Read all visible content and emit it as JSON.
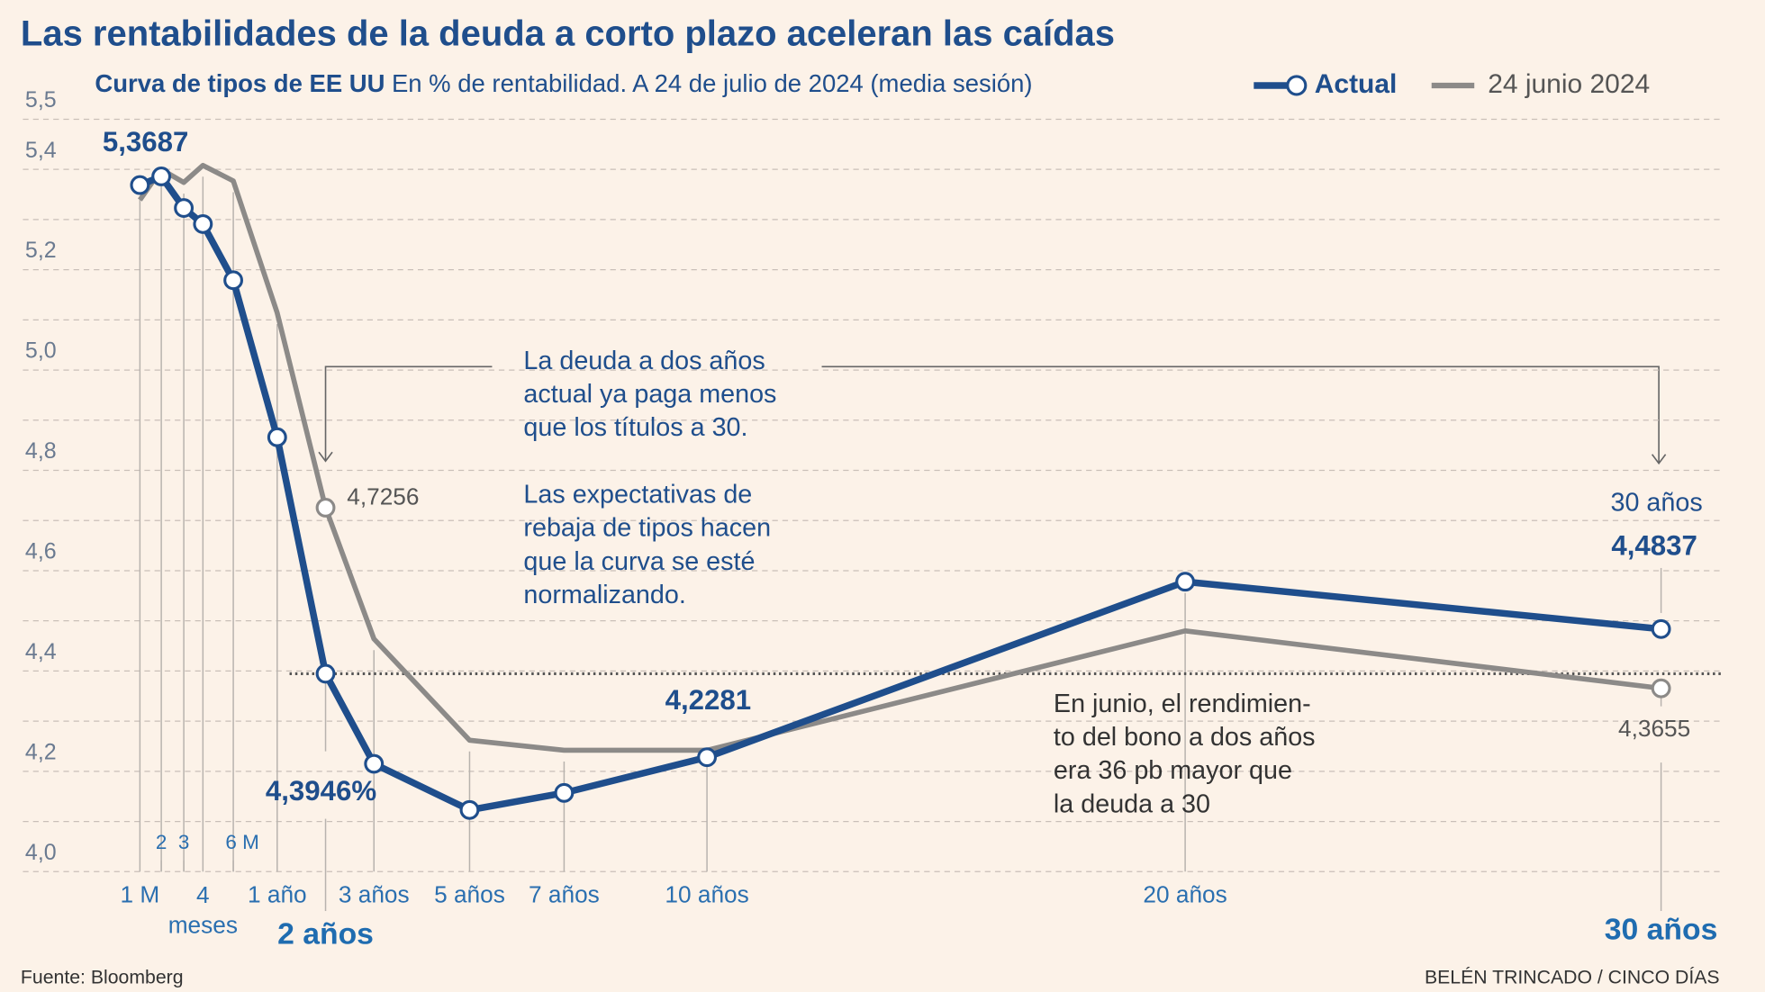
{
  "chart_data": {
    "type": "line",
    "title": "Las rentabilidades de la deuda a corto plazo aceleran las caídas",
    "subtitle_bold": "Curva de tipos de EE UU",
    "subtitle": "En % de rentabilidad. A 24 de julio de 2024 (media sesión)",
    "categories": [
      "1 M",
      "2",
      "3",
      "4 meses",
      "6 M",
      "1 año",
      "2 años",
      "3 años",
      "5 años",
      "7 años",
      "10 años",
      "20 años",
      "30 años"
    ],
    "highlighted_categories": [
      6,
      12
    ],
    "series": [
      {
        "name": "Actual",
        "color": "#1f4e8c",
        "values": [
          5.3687,
          5.386,
          5.323,
          5.291,
          5.179,
          4.866,
          4.3946,
          4.215,
          4.123,
          4.157,
          4.2281,
          4.578,
          4.4837
        ],
        "value_labels": [
          "5,3687",
          null,
          null,
          null,
          null,
          null,
          "4,3946%",
          null,
          null,
          null,
          "4,2281",
          null,
          "4,4837"
        ],
        "markers": [
          0,
          1,
          2,
          3,
          4,
          5,
          6,
          7,
          8,
          9,
          10,
          11,
          12
        ]
      },
      {
        "name": "24 junio 2024",
        "color": "#8c8a88",
        "values": [
          5.339,
          5.4,
          5.374,
          5.408,
          5.377,
          5.114,
          4.7256,
          4.464,
          4.262,
          4.242,
          4.242,
          4.48,
          4.3655
        ],
        "value_labels": [
          null,
          null,
          null,
          null,
          null,
          null,
          "4,7256",
          null,
          null,
          null,
          null,
          null,
          "4,3655"
        ],
        "markers": [
          6,
          12
        ]
      }
    ],
    "ylim": [
      4.0,
      5.5
    ],
    "yticks": [
      {
        "value": 5.5,
        "label": "5,5"
      },
      {
        "value": 5.4,
        "label": "5,4"
      },
      {
        "value": 5.2,
        "label": "5,2"
      },
      {
        "value": 5.0,
        "label": "5,0"
      },
      {
        "value": 4.8,
        "label": "4,8"
      },
      {
        "value": 4.6,
        "label": "4,6"
      },
      {
        "value": 4.4,
        "label": "4,4"
      },
      {
        "value": 4.2,
        "label": "4,2"
      },
      {
        "value": 4.0,
        "label": "4,0"
      }
    ],
    "minor_yticks": [
      5.3,
      5.1,
      4.9,
      4.7,
      4.5,
      4.3,
      4.1
    ],
    "grid": true,
    "reference_line": {
      "series": 0,
      "index": 6
    },
    "annotations": [
      {
        "lines": [
          "La deuda a dos años",
          "actual ya paga menos",
          "que los títulos a 30."
        ]
      },
      {
        "lines": [
          "Las expectativas de",
          "rebaja de tipos hacen",
          "que la curva se esté",
          "normalizando."
        ]
      },
      {
        "lines": [
          "En junio, el rendimien-",
          "to del bono a dos años",
          "era 36 pb mayor que",
          "la deuda a 30"
        ]
      },
      {
        "lines": [
          "30 años"
        ]
      }
    ],
    "source": "Fuente: Bloomberg",
    "credit": "BELÉN TRINCADO / CINCO DÍAS"
  }
}
